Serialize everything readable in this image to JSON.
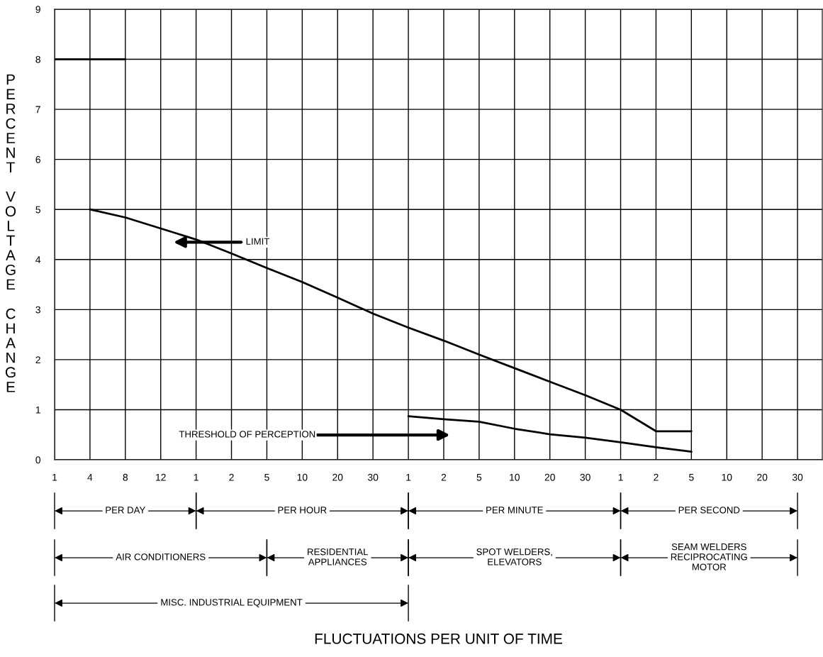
{
  "chart_data": {
    "type": "line",
    "ylabel": "PERCENT VOLTAGE CHANGE",
    "categories": [
      "1",
      "4",
      "8",
      "12",
      "1",
      "2",
      "5",
      "10",
      "20",
      "30",
      "1",
      "2",
      "5",
      "10",
      "20",
      "30",
      "1",
      "2",
      "5",
      "10",
      "20",
      "30"
    ],
    "ylim": [
      0,
      9
    ],
    "yticks": [
      0,
      1,
      2,
      3,
      4,
      5,
      6,
      7,
      8,
      9
    ],
    "grid": true,
    "marker": "none",
    "line_style": "solid",
    "series": [
      {
        "color": "#000000",
        "values": [
          null,
          5.0,
          4.84,
          4.62,
          4.4,
          4.12,
          3.83,
          3.55,
          3.24,
          2.92,
          2.64,
          2.38,
          2.1,
          1.83,
          1.56,
          1.29,
          1.0,
          0.57,
          0.57,
          null,
          null,
          null
        ]
      },
      {
        "color": "#000000",
        "values": [
          null,
          null,
          null,
          null,
          null,
          null,
          null,
          null,
          null,
          null,
          0.87,
          0.81,
          0.76,
          0.62,
          0.51,
          0.44,
          0.35,
          0.25,
          0.16,
          null,
          null,
          null
        ]
      },
      {
        "color": "#000000",
        "values": [
          8,
          8,
          8,
          null,
          null,
          null,
          null,
          null,
          null,
          null,
          null,
          null,
          null,
          null,
          null,
          null,
          null,
          null,
          null,
          null,
          null,
          null
        ]
      }
    ],
    "annotations": [
      "LIMIT",
      "THRESHOLD OF PERCEPTION",
      "PER DAY",
      "PER HOUR",
      "PER MINUTE",
      "PER SECOND",
      "AIR CONDITIONERS",
      "RESIDENTIAL\nAPPLIANCES",
      "SPOT WELDERS,\nELEVATORS",
      "SEAM WELDERS\nRECIPROCATING\nMOTOR",
      "MISC. INDUSTRIAL EQUIPMENT",
      "FLUCTUATIONS PER UNIT OF TIME"
    ]
  }
}
